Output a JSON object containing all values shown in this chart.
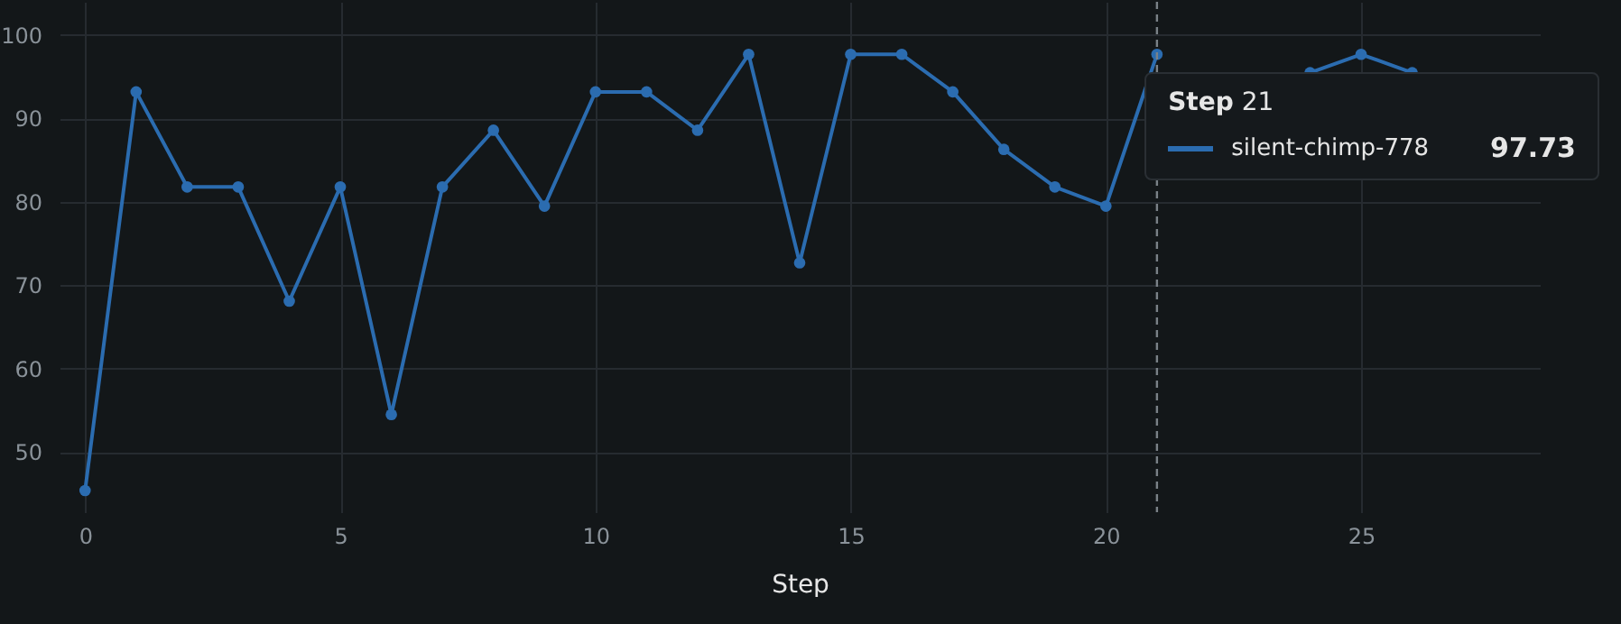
{
  "chart_data": {
    "type": "line",
    "xlabel": "Step",
    "legend_title": "Step 21",
    "x": [
      0,
      1,
      2,
      3,
      4,
      5,
      6,
      7,
      8,
      9,
      10,
      11,
      12,
      13,
      14,
      15,
      16,
      17,
      18,
      19,
      20,
      21,
      22,
      23,
      24,
      25,
      26
    ],
    "series": [
      {
        "name": "silent-chimp-778",
        "color": "#2b6cb0",
        "values": [
          45.4,
          93.2,
          81.8,
          81.8,
          68.1,
          81.8,
          54.5,
          81.8,
          88.6,
          79.5,
          93.2,
          93.2,
          88.6,
          97.7,
          72.7,
          97.7,
          97.7,
          93.2,
          86.3,
          81.8,
          79.5,
          97.7,
          null,
          null,
          95.5,
          97.7,
          95.5
        ]
      }
    ],
    "annotations": [
      "97.73"
    ],
    "ref_lines": [
      {
        "axis": "x",
        "value": 21,
        "line_style": "dashed"
      }
    ],
    "xlim": [
      -0.5,
      28.5
    ],
    "xticks": [
      0,
      5,
      10,
      15,
      20,
      25
    ],
    "ylim": [
      42.8,
      104
    ],
    "yticks": [
      50,
      60,
      70,
      80,
      90,
      100
    ],
    "grid": true,
    "marker": "circle",
    "line_style": "solid",
    "legend": "top right"
  }
}
